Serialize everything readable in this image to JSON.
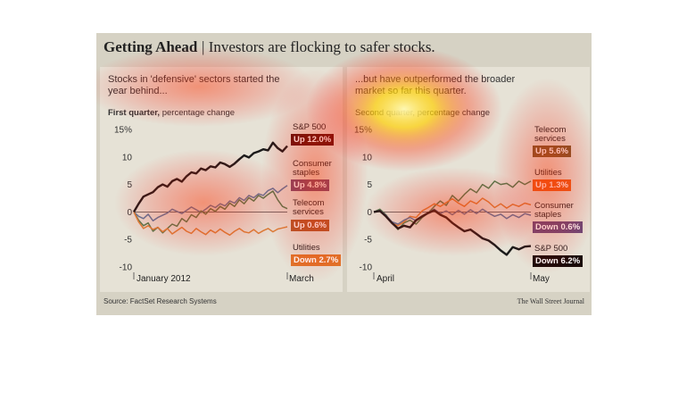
{
  "header": {
    "title_bold": "Getting Ahead",
    "title_rest": "Investors are flocking to safer stocks."
  },
  "footer": {
    "source": "Source: FactSet Research Systems",
    "credit": "The Wall Street Journal"
  },
  "colors": {
    "sp500": "#1a1a1a",
    "consumer_staples": "#5a7aa0",
    "telecom": "#4f7d4f",
    "utilities": "#d9823a",
    "up_red": "#c62a1e"
  },
  "chart_data": [
    {
      "type": "line",
      "title": "Stocks in 'defensive' sectors started the year behind...",
      "subtitle_bold": "First quarter,",
      "subtitle_rest": " percentage change",
      "x_start_label": "January 2012",
      "x_end_label": "March",
      "ylim": [
        -10,
        15
      ],
      "yticks": [
        "15%",
        "10",
        "5",
        "0",
        "-5",
        "-10"
      ],
      "grid": false,
      "series": [
        {
          "name": "S&P 500",
          "badge": "Up 12.0%",
          "values": [
            0,
            1.5,
            2.8,
            3.2,
            3.6,
            4.5,
            5.0,
            4.6,
            5.6,
            6.0,
            5.5,
            6.5,
            7.2,
            7.0,
            7.9,
            7.6,
            8.3,
            8.1,
            9.0,
            8.7,
            8.2,
            8.8,
            9.6,
            10.3,
            9.9,
            10.7,
            11.0,
            11.4,
            11.2,
            12.6,
            11.6,
            11.0,
            12.0
          ]
        },
        {
          "name": "Consumer staples",
          "badge": "Up 4.8%",
          "values": [
            0,
            -0.8,
            -1.2,
            -0.4,
            -1.6,
            -1.0,
            -0.6,
            -0.2,
            0.5,
            0.1,
            -0.3,
            0.3,
            0.9,
            0.4,
            -0.1,
            0.5,
            1.2,
            0.8,
            1.5,
            1.1,
            2.0,
            1.6,
            2.6,
            2.1,
            3.0,
            2.6,
            3.3,
            3.0,
            3.9,
            4.3,
            3.5,
            4.2,
            4.8
          ]
        },
        {
          "name": "Telecom services",
          "badge": "Up 0.6%",
          "values": [
            0,
            -1.5,
            -2.5,
            -2.0,
            -3.5,
            -2.8,
            -3.8,
            -3.0,
            -2.2,
            -2.6,
            -1.2,
            -1.8,
            -0.5,
            -1.0,
            0.2,
            -0.4,
            0.6,
            0.1,
            1.0,
            0.5,
            1.6,
            1.0,
            2.2,
            1.5,
            2.6,
            2.0,
            3.0,
            2.5,
            3.2,
            3.8,
            2.2,
            1.0,
            0.6
          ]
        },
        {
          "name": "Utilities",
          "badge": "Down 2.7%",
          "values": [
            0,
            -1.8,
            -3.0,
            -2.5,
            -3.2,
            -2.8,
            -3.6,
            -3.0,
            -4.0,
            -3.4,
            -2.8,
            -3.5,
            -3.9,
            -3.0,
            -3.6,
            -4.1,
            -3.3,
            -3.8,
            -3.1,
            -3.7,
            -4.2,
            -3.5,
            -3.0,
            -3.6,
            -3.8,
            -3.2,
            -3.9,
            -3.4,
            -3.0,
            -3.6,
            -3.1,
            -2.9,
            -2.7
          ]
        }
      ]
    },
    {
      "type": "line",
      "title": "...but have outperformed the broader market so far this quarter.",
      "subtitle_bold": "",
      "subtitle_rest": "Second quarter, percentage change",
      "x_start_label": "April",
      "x_end_label": "May",
      "ylim": [
        -10,
        15
      ],
      "yticks": [
        "15%",
        "10",
        "5",
        "0",
        "-5",
        "-10"
      ],
      "grid": false,
      "series": [
        {
          "name": "Telecom services",
          "badge": "Up 5.6%",
          "values": [
            0,
            0.5,
            -0.5,
            -2.0,
            -3.2,
            -2.0,
            -1.5,
            -2.2,
            -1.0,
            -0.2,
            1.0,
            2.0,
            1.2,
            3.0,
            2.0,
            3.2,
            4.2,
            3.5,
            5.0,
            4.3,
            5.6,
            5.0,
            5.2,
            4.5,
            5.6,
            5.0,
            5.6
          ]
        },
        {
          "name": "Utilities",
          "badge": "Up 1.3%",
          "values": [
            0,
            0.2,
            -0.8,
            -2.0,
            -2.5,
            -1.8,
            -0.8,
            -1.0,
            0.2,
            0.8,
            1.5,
            1.0,
            1.7,
            2.4,
            1.6,
            1.0,
            2.0,
            1.5,
            2.5,
            1.8,
            0.8,
            1.5,
            0.7,
            1.4,
            1.0,
            1.6,
            1.3
          ]
        },
        {
          "name": "Consumer staples",
          "badge": "Down 0.6%",
          "values": [
            0,
            0.3,
            -0.6,
            -1.8,
            -2.2,
            -1.5,
            -1.0,
            -1.6,
            -0.8,
            -0.2,
            0.5,
            -0.3,
            0.2,
            -0.5,
            0.3,
            -0.4,
            0.4,
            -0.3,
            0.5,
            -0.2,
            -0.8,
            -0.4,
            -1.2,
            -0.5,
            -1.0,
            -0.3,
            -0.6
          ]
        },
        {
          "name": "S&P 500",
          "badge": "Down 6.2%",
          "values": [
            0,
            0.2,
            -0.8,
            -2.0,
            -3.0,
            -2.5,
            -2.8,
            -1.5,
            -0.8,
            -0.2,
            0.3,
            -0.5,
            -1.0,
            -2.0,
            -2.8,
            -3.5,
            -3.2,
            -4.0,
            -4.8,
            -5.2,
            -6.0,
            -7.0,
            -7.8,
            -6.4,
            -6.8,
            -6.3,
            -6.2
          ]
        }
      ]
    }
  ]
}
